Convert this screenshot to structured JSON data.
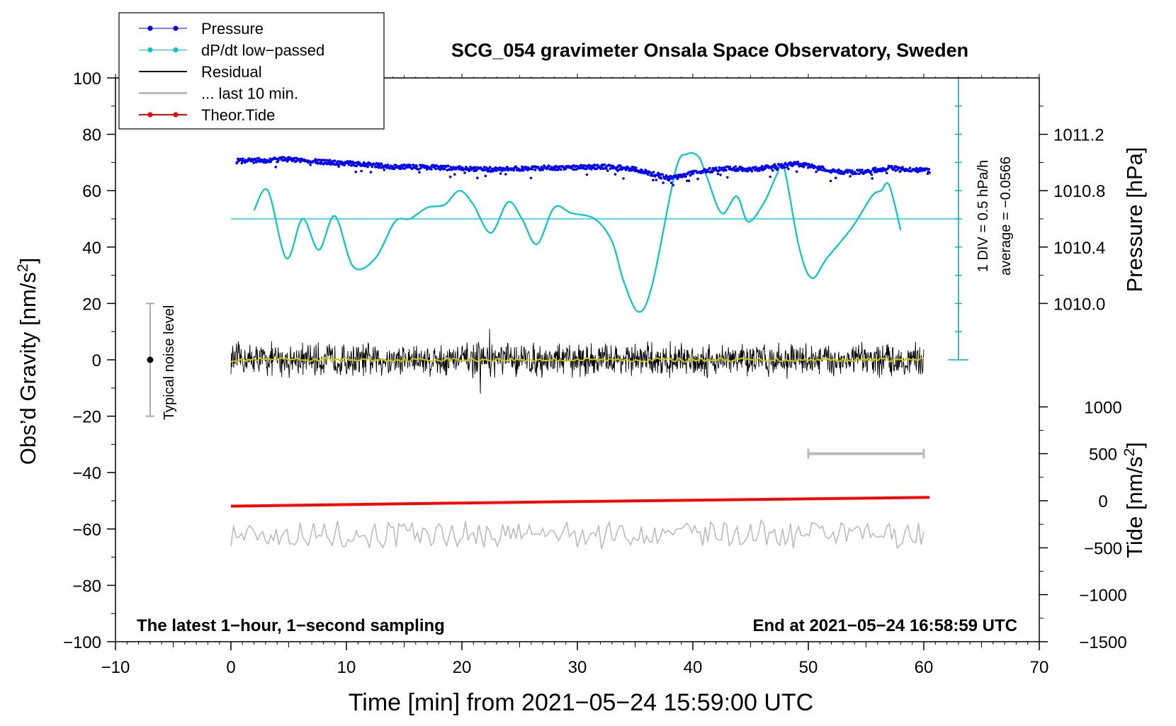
{
  "chart_data": {
    "type": "line",
    "title": "SCG_054 gravimeter Onsala Space Observatory, Sweden",
    "xlabel": "Time [min] from 2021−05−24 15:59:00 UTC",
    "ylabel_left_text": "Obs’d Gravity [nm/s",
    "ylabel_left_sup": "2",
    "ylabel_left_close": "]",
    "ylabel_pressure": "Pressure [hPa]",
    "ylabel_tide_text": "Tide [nm/s",
    "ylabel_tide_sup": "2",
    "ylabel_tide_close": "]",
    "xlim": [
      -10,
      70
    ],
    "ylim": [
      -100,
      100
    ],
    "x_ticks": [
      -10,
      0,
      10,
      20,
      30,
      40,
      50,
      60,
      70
    ],
    "x_tick_labels": [
      "−10",
      "0",
      "10",
      "20",
      "30",
      "40",
      "50",
      "60",
      "70"
    ],
    "y_ticks": [
      100,
      80,
      60,
      40,
      20,
      0,
      -20,
      -40,
      -60,
      -80,
      -100
    ],
    "y_tick_labels": [
      "100",
      "80",
      "60",
      "40",
      "20",
      "0",
      "−20",
      "−40",
      "−60",
      "−80",
      "−100"
    ],
    "pressure_axis": {
      "ticks": [
        1011.2,
        1010.8,
        1010.4,
        1010.0
      ],
      "tick_labels": [
        "1011.2",
        "1010.8",
        "1010.4",
        "1010.0"
      ],
      "gravity_equiv": [
        80,
        60,
        40,
        20
      ],
      "tick_top_gravity": 100,
      "tick_bottom_gravity": 20
    },
    "tide_axis": {
      "ticks": [
        1000,
        500,
        0,
        -500,
        -1000,
        -1500
      ],
      "tick_labels": [
        "1000",
        "500",
        "0",
        "−500",
        "−1000",
        "−1500"
      ],
      "gravity_equiv": [
        -16.7,
        -33.3,
        -50,
        -66.7,
        -83.3,
        -100
      ]
    },
    "series": [
      {
        "name": "Pressure",
        "color": "#0000ff",
        "style": "dots",
        "x": [
          0.5,
          3,
          5,
          8,
          11,
          14,
          18,
          22,
          26,
          30,
          33,
          35,
          37,
          38,
          39,
          41,
          43,
          45,
          47,
          49,
          51,
          53,
          55,
          57,
          60.5
        ],
        "values": [
          70.5,
          70.8,
          71.2,
          70.2,
          69.5,
          68.5,
          68.2,
          67.5,
          68.0,
          68.3,
          68.5,
          67.5,
          65.5,
          64.3,
          65.5,
          67.0,
          68.0,
          67.5,
          68.5,
          69.5,
          68.0,
          66.5,
          66.8,
          68.0,
          67.0
        ]
      },
      {
        "name": "dP/dt low−passed",
        "color": "#00c8c8",
        "style": "line",
        "x": [
          2,
          3.2,
          4.8,
          6.2,
          7.6,
          9,
          10.6,
          12.5,
          14.2,
          15.5,
          17,
          18.5,
          19.8,
          21,
          22.5,
          24,
          25.2,
          26.5,
          28,
          29.5,
          31.5,
          33,
          34,
          35.3,
          36.5,
          38.5,
          39.5,
          40.5,
          41.2,
          42.5,
          43.8,
          44.8,
          46.2,
          47.2,
          47.9,
          49.2,
          50.3,
          51.6,
          53.8,
          55.5,
          56.3,
          57,
          58
        ],
        "values": [
          53,
          60,
          36,
          50,
          39,
          51,
          33,
          36,
          49,
          50,
          54,
          55,
          60,
          55,
          45,
          56,
          50,
          41,
          54,
          52,
          50,
          42,
          28,
          17,
          27,
          67,
          73,
          72,
          65,
          52,
          58,
          49,
          56,
          65,
          68,
          40,
          29,
          36,
          47,
          58,
          60,
          62,
          46
        ]
      },
      {
        "name": "Residual",
        "color": "#000000",
        "style": "noise",
        "x_range": [
          0,
          60
        ],
        "center": 0,
        "amplitude": 7,
        "spikes": [
          11,
          -12
        ]
      },
      {
        "name": "... last 10 min.",
        "color": "#bbbbbb",
        "style": "noise",
        "x_range": [
          0,
          60
        ],
        "center": -62,
        "amplitude": 4
      },
      {
        "name": "Theor.Tide",
        "color": "#ff0000",
        "style": "line",
        "x": [
          0,
          20,
          40,
          60.5
        ],
        "values": [
          -51.9,
          -50.8,
          -49.8,
          -48.8
        ]
      }
    ],
    "average_line": {
      "value": 50,
      "color": "#00c8c8"
    },
    "scale_bar_right": {
      "x": 63,
      "y_top": 100,
      "y_bottom": 0,
      "divisions": 10,
      "label_1": "1 DIV = 0.5 hPa/h",
      "label_2": "average = −0.0566"
    },
    "noise_level_bar": {
      "x": -7,
      "y_top": 20,
      "y_bottom": -20,
      "center": 0,
      "label": "Typical noise level"
    },
    "last_10min_bar": {
      "x_start": 50,
      "x_end": 60,
      "y": -33.3
    },
    "annotations": {
      "bottom_left": "The latest 1−hour, 1−second sampling",
      "bottom_right": "End at 2021−05−24 16:58:59 UTC"
    },
    "legend": {
      "placement": "top-left",
      "entries": [
        {
          "label": "Pressure",
          "color": "#0000ff",
          "marker": true,
          "lw": 1
        },
        {
          "label": "dP/dt low−passed",
          "color": "#00c8c8",
          "marker": true,
          "lw": 1
        },
        {
          "label": "Residual",
          "color": "#000000",
          "marker": false,
          "lw": 2
        },
        {
          "label": "... last 10 min.",
          "color": "#bbbbbb",
          "marker": false,
          "lw": 3
        },
        {
          "label": "Theor.Tide",
          "color": "#ff0000",
          "marker": true,
          "lw": 2
        }
      ]
    }
  }
}
